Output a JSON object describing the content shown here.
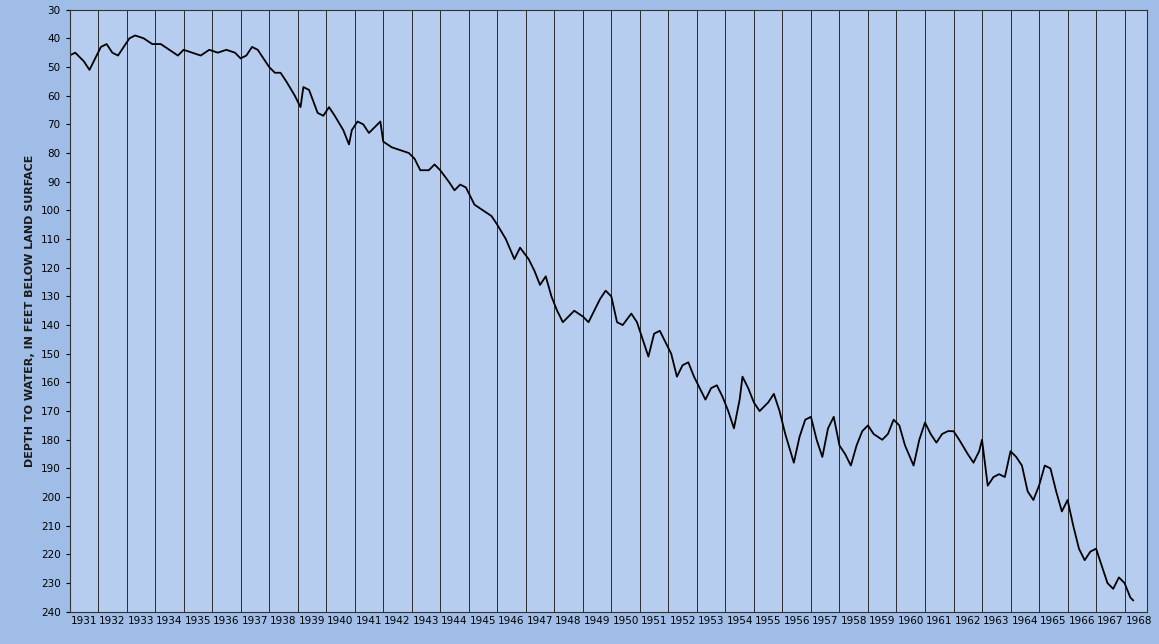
{
  "chart_data": {
    "type": "line",
    "ylabel": "DEPTH TO WATER, IN FEET BELOW LAND SURFACE",
    "color": "#000000",
    "grid": true,
    "x": [
      1931.0,
      1931.2,
      1931.5,
      1931.7,
      1931.9,
      1932.1,
      1932.3,
      1932.5,
      1932.7,
      1932.9,
      1933.1,
      1933.3,
      1933.6,
      1933.9,
      1934.2,
      1934.5,
      1934.8,
      1935.0,
      1935.3,
      1935.6,
      1935.9,
      1936.2,
      1936.5,
      1936.8,
      1937.0,
      1937.2,
      1937.4,
      1937.6,
      1937.8,
      1938.0,
      1938.2,
      1938.4,
      1938.6,
      1938.9,
      1939.1,
      1939.2,
      1939.4,
      1939.7,
      1939.9,
      1940.1,
      1940.3,
      1940.6,
      1940.8,
      1940.9,
      1941.1,
      1941.3,
      1941.5,
      1941.7,
      1941.9,
      1942.0,
      1942.3,
      1942.6,
      1942.9,
      1943.1,
      1943.3,
      1943.6,
      1943.8,
      1944.0,
      1944.3,
      1944.5,
      1944.7,
      1944.9,
      1945.2,
      1945.5,
      1945.8,
      1946.0,
      1946.3,
      1946.6,
      1946.8,
      1947.1,
      1947.3,
      1947.5,
      1947.7,
      1947.9,
      1948.1,
      1948.3,
      1948.5,
      1948.7,
      1949.0,
      1949.2,
      1949.4,
      1949.6,
      1949.8,
      1950.0,
      1950.2,
      1950.4,
      1950.7,
      1950.9,
      1951.1,
      1951.3,
      1951.5,
      1951.7,
      1951.9,
      1952.1,
      1952.3,
      1952.5,
      1952.7,
      1952.9,
      1953.1,
      1953.3,
      1953.5,
      1953.7,
      1953.9,
      1954.1,
      1954.3,
      1954.5,
      1954.6,
      1954.8,
      1955.0,
      1955.2,
      1955.5,
      1955.7,
      1955.9,
      1956.1,
      1956.4,
      1956.6,
      1956.8,
      1957.0,
      1957.2,
      1957.4,
      1957.6,
      1957.8,
      1958.0,
      1958.2,
      1958.4,
      1958.6,
      1958.8,
      1959.0,
      1959.2,
      1959.5,
      1959.7,
      1959.9,
      1960.1,
      1960.3,
      1960.6,
      1960.8,
      1961.0,
      1961.2,
      1961.4,
      1961.6,
      1961.8,
      1962.0,
      1962.2,
      1962.5,
      1962.7,
      1962.9,
      1963.0,
      1963.2,
      1963.4,
      1963.6,
      1963.8,
      1964.0,
      1964.2,
      1964.4,
      1964.6,
      1964.8,
      1965.0,
      1965.2,
      1965.4,
      1965.6,
      1965.8,
      1966.0,
      1966.2,
      1966.4,
      1966.6,
      1966.8,
      1967.0,
      1967.2,
      1967.4,
      1967.6,
      1967.8,
      1968.0,
      1968.2,
      1968.3
    ],
    "values": [
      46,
      45,
      48,
      51,
      47,
      43,
      42,
      45,
      46,
      43,
      40,
      39,
      40,
      42,
      42,
      44,
      46,
      44,
      45,
      46,
      44,
      45,
      44,
      45,
      47,
      46,
      43,
      44,
      47,
      50,
      52,
      52,
      55,
      60,
      64,
      57,
      58,
      66,
      67,
      64,
      67,
      72,
      77,
      72,
      69,
      70,
      73,
      71,
      69,
      76,
      78,
      79,
      80,
      82,
      86,
      86,
      84,
      86,
      90,
      93,
      91,
      92,
      98,
      100,
      102,
      105,
      110,
      117,
      113,
      117,
      121,
      126,
      123,
      130,
      135,
      139,
      137,
      135,
      137,
      139,
      135,
      131,
      128,
      130,
      139,
      140,
      136,
      139,
      145,
      151,
      143,
      142,
      146,
      150,
      158,
      154,
      153,
      158,
      162,
      166,
      162,
      161,
      165,
      170,
      176,
      166,
      158,
      162,
      167,
      170,
      167,
      164,
      170,
      178,
      188,
      179,
      173,
      172,
      180,
      186,
      176,
      172,
      182,
      185,
      189,
      182,
      177,
      175,
      178,
      180,
      178,
      173,
      175,
      182,
      189,
      180,
      174,
      178,
      181,
      178,
      177,
      177,
      180,
      185,
      188,
      184,
      180,
      196,
      193,
      192,
      193,
      184,
      186,
      189,
      198,
      201,
      196,
      189,
      190,
      198,
      205,
      201,
      210,
      218,
      222,
      219,
      218,
      224,
      230,
      232,
      228,
      230,
      235,
      236
    ],
    "xlim": [
      1931.0,
      1968.8
    ],
    "ylim": [
      240,
      30
    ],
    "yticks": [
      30,
      40,
      50,
      60,
      70,
      80,
      90,
      100,
      110,
      120,
      130,
      140,
      150,
      160,
      170,
      180,
      190,
      200,
      210,
      220,
      230,
      240
    ],
    "xticks": [
      {
        "value": 1931.5,
        "label": "1931"
      },
      {
        "value": 1932.5,
        "label": "1932"
      },
      {
        "value": 1933.5,
        "label": "1933"
      },
      {
        "value": 1934.5,
        "label": "1934"
      },
      {
        "value": 1935.5,
        "label": "1935"
      },
      {
        "value": 1936.5,
        "label": "1936"
      },
      {
        "value": 1937.5,
        "label": "1937"
      },
      {
        "value": 1938.5,
        "label": "1938"
      },
      {
        "value": 1939.5,
        "label": "1939"
      },
      {
        "value": 1940.5,
        "label": "1940"
      },
      {
        "value": 1941.5,
        "label": "1941"
      },
      {
        "value": 1942.5,
        "label": "1942"
      },
      {
        "value": 1943.5,
        "label": "1943"
      },
      {
        "value": 1944.5,
        "label": "1944"
      },
      {
        "value": 1945.5,
        "label": "1945"
      },
      {
        "value": 1946.5,
        "label": "1946"
      },
      {
        "value": 1947.5,
        "label": "1947"
      },
      {
        "value": 1948.5,
        "label": "1948"
      },
      {
        "value": 1949.5,
        "label": "1949"
      },
      {
        "value": 1950.5,
        "label": "1950"
      },
      {
        "value": 1951.5,
        "label": "1951"
      },
      {
        "value": 1952.5,
        "label": "1952"
      },
      {
        "value": 1953.5,
        "label": "1953"
      },
      {
        "value": 1954.5,
        "label": "1954"
      },
      {
        "value": 1955.5,
        "label": "1955"
      },
      {
        "value": 1956.5,
        "label": "1956"
      },
      {
        "value": 1957.5,
        "label": "1957"
      },
      {
        "value": 1958.5,
        "label": "1958"
      },
      {
        "value": 1959.5,
        "label": "1959"
      },
      {
        "value": 1960.5,
        "label": "1960"
      },
      {
        "value": 1961.5,
        "label": "1961"
      },
      {
        "value": 1962.5,
        "label": "1962"
      },
      {
        "value": 1963.5,
        "label": "1963"
      },
      {
        "value": 1964.5,
        "label": "1964"
      },
      {
        "value": 1965.5,
        "label": "1965"
      },
      {
        "value": 1966.5,
        "label": "1966"
      },
      {
        "value": 1967.5,
        "label": "1967"
      },
      {
        "value": 1968.5,
        "label": "1968"
      }
    ]
  }
}
